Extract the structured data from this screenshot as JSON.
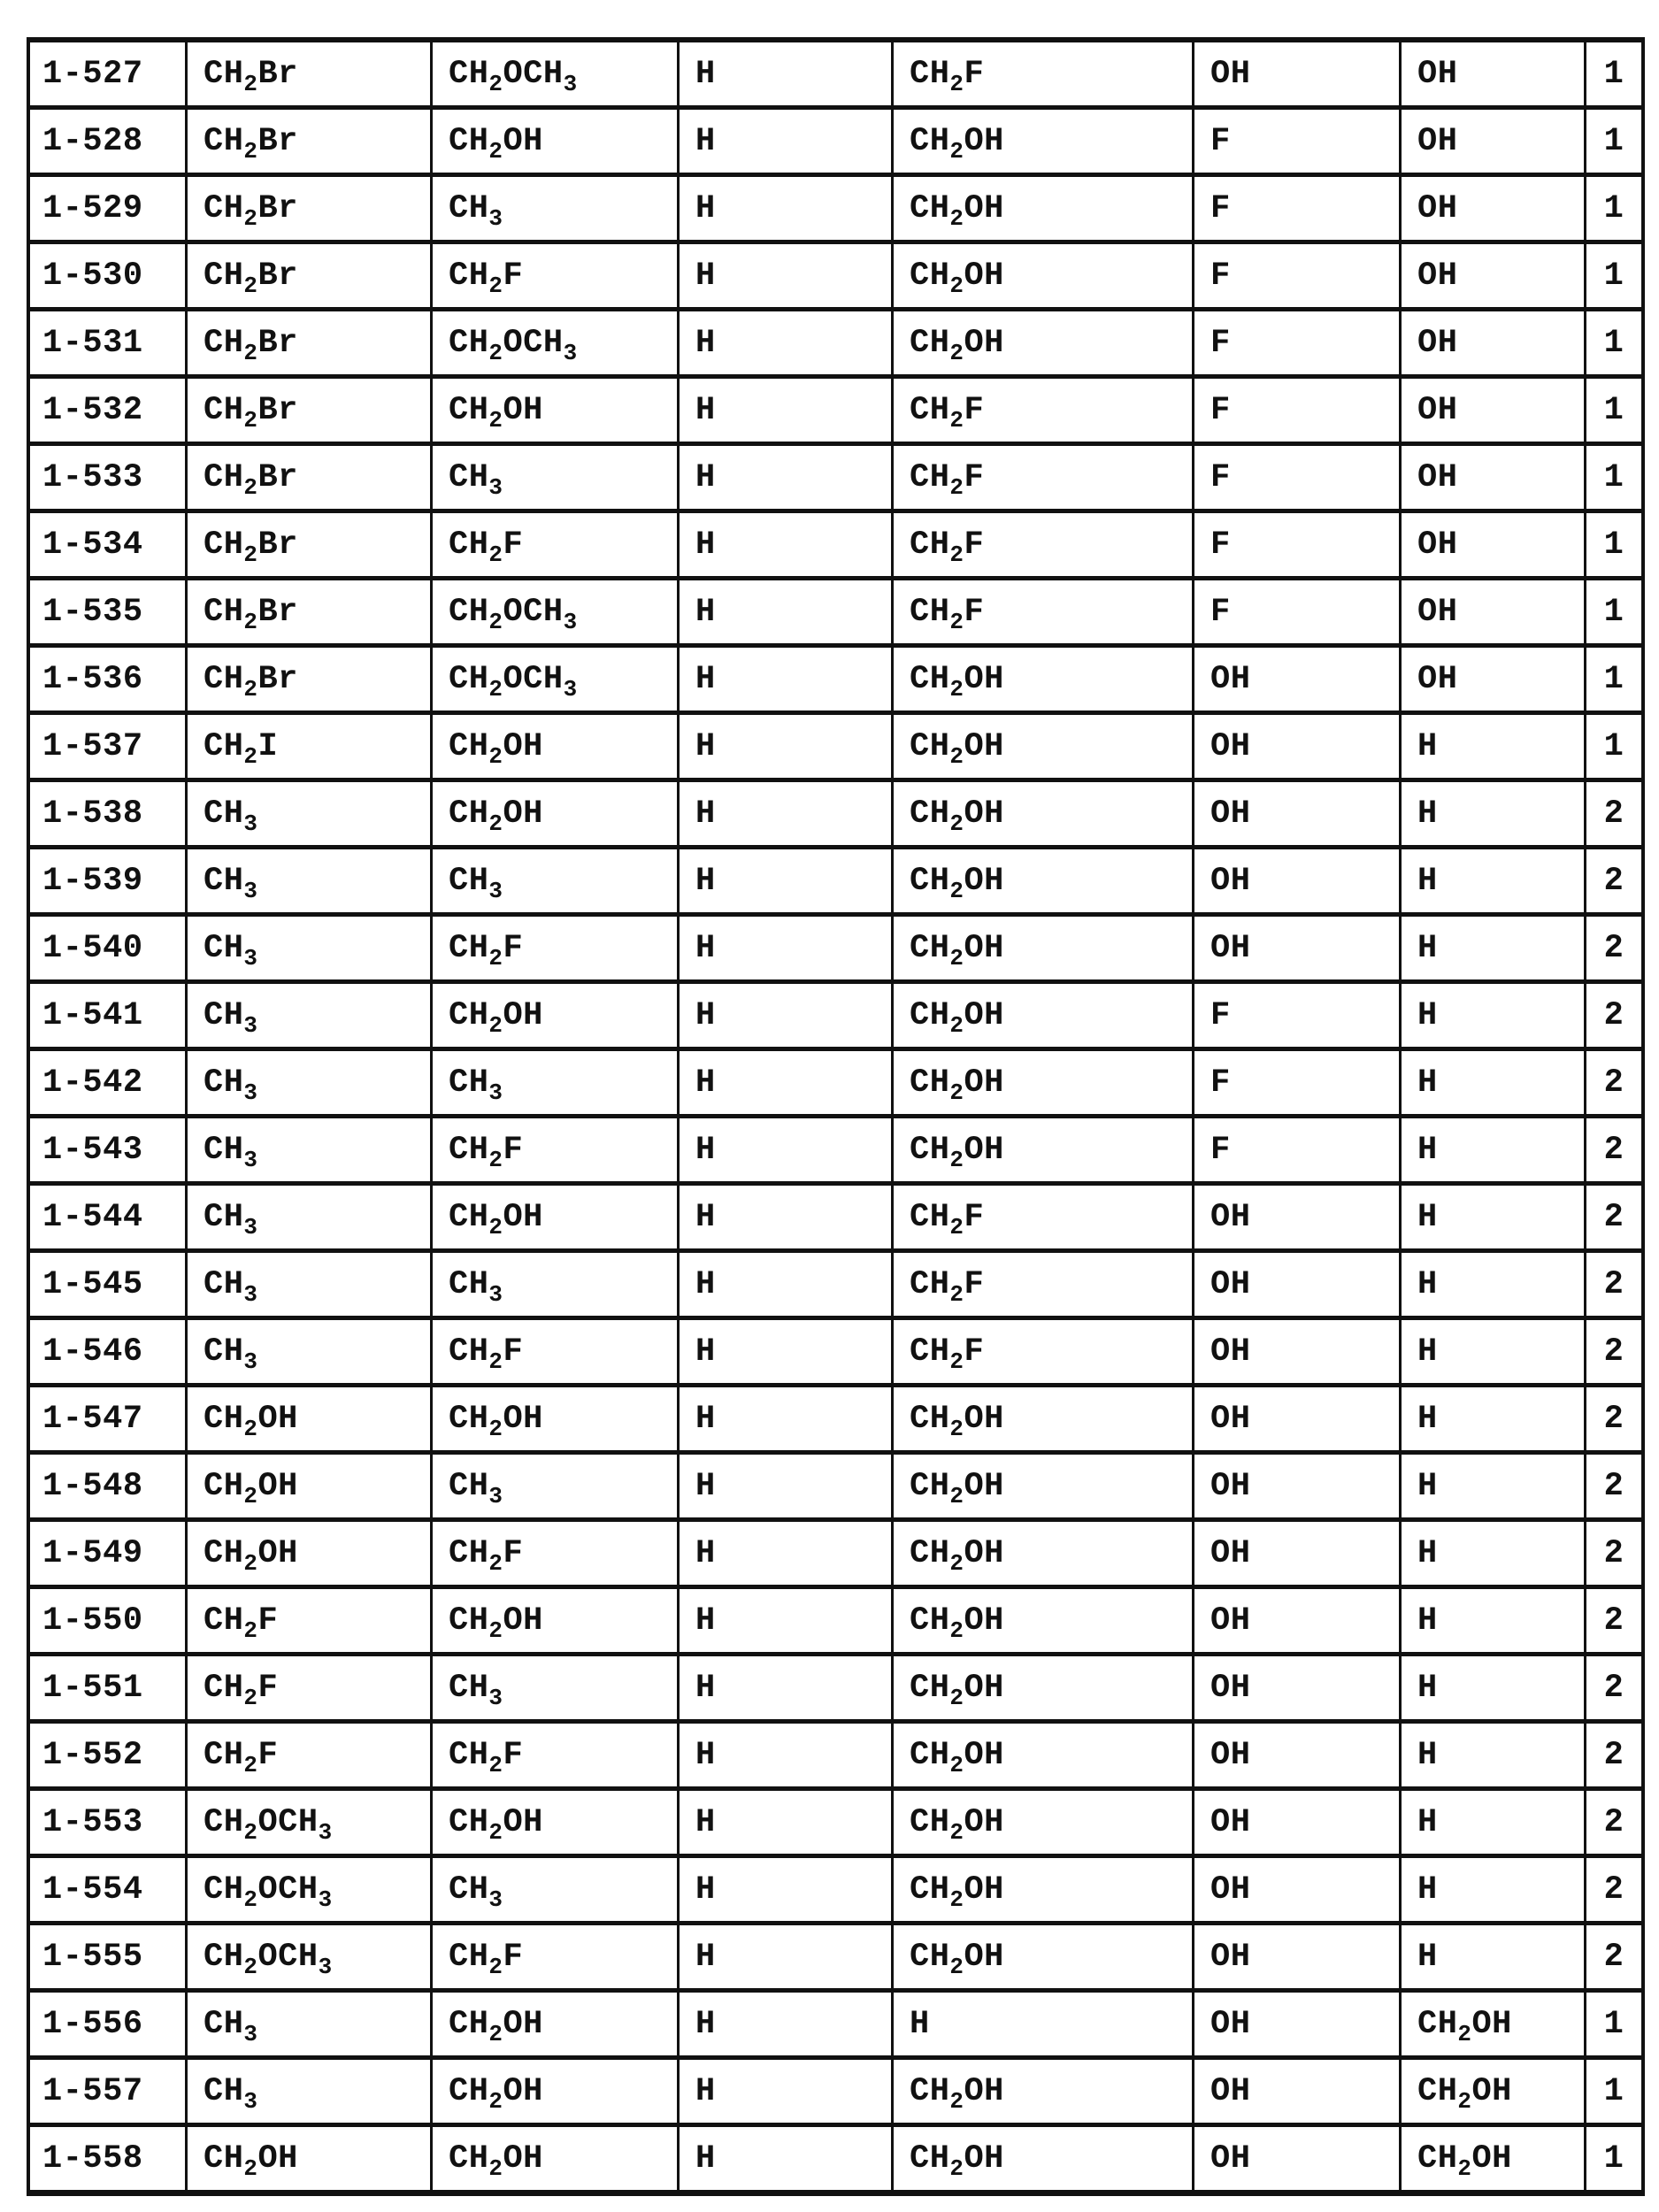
{
  "colors": {
    "ink": "#111111",
    "paper": "#ffffff"
  },
  "table": {
    "rows": [
      [
        "1-527",
        "CH2Br",
        "CH2OCH3",
        "H",
        "CH2F",
        "OH",
        "OH",
        "1"
      ],
      [
        "1-528",
        "CH2Br",
        "CH2OH",
        "H",
        "CH2OH",
        "F",
        "OH",
        "1"
      ],
      [
        "1-529",
        "CH2Br",
        "CH3",
        "H",
        "CH2OH",
        "F",
        "OH",
        "1"
      ],
      [
        "1-530",
        "CH2Br",
        "CH2F",
        "H",
        "CH2OH",
        "F",
        "OH",
        "1"
      ],
      [
        "1-531",
        "CH2Br",
        "CH2OCH3",
        "H",
        "CH2OH",
        "F",
        "OH",
        "1"
      ],
      [
        "1-532",
        "CH2Br",
        "CH2OH",
        "H",
        "CH2F",
        "F",
        "OH",
        "1"
      ],
      [
        "1-533",
        "CH2Br",
        "CH3",
        "H",
        "CH2F",
        "F",
        "OH",
        "1"
      ],
      [
        "1-534",
        "CH2Br",
        "CH2F",
        "H",
        "CH2F",
        "F",
        "OH",
        "1"
      ],
      [
        "1-535",
        "CH2Br",
        "CH2OCH3",
        "H",
        "CH2F",
        "F",
        "OH",
        "1"
      ],
      [
        "1-536",
        "CH2Br",
        "CH2OCH3",
        "H",
        "CH2OH",
        "OH",
        "OH",
        "1"
      ],
      [
        "1-537",
        "CH2I",
        "CH2OH",
        "H",
        "CH2OH",
        "OH",
        "H",
        "1"
      ],
      [
        "1-538",
        "CH3",
        "CH2OH",
        "H",
        "CH2OH",
        "OH",
        "H",
        "2"
      ],
      [
        "1-539",
        "CH3",
        "CH3",
        "H",
        "CH2OH",
        "OH",
        "H",
        "2"
      ],
      [
        "1-540",
        "CH3",
        "CH2F",
        "H",
        "CH2OH",
        "OH",
        "H",
        "2"
      ],
      [
        "1-541",
        "CH3",
        "CH2OH",
        "H",
        "CH2OH",
        "F",
        "H",
        "2"
      ],
      [
        "1-542",
        "CH3",
        "CH3",
        "H",
        "CH2OH",
        "F",
        "H",
        "2"
      ],
      [
        "1-543",
        "CH3",
        "CH2F",
        "H",
        "CH2OH",
        "F",
        "H",
        "2"
      ],
      [
        "1-544",
        "CH3",
        "CH2OH",
        "H",
        "CH2F",
        "OH",
        "H",
        "2"
      ],
      [
        "1-545",
        "CH3",
        "CH3",
        "H",
        "CH2F",
        "OH",
        "H",
        "2"
      ],
      [
        "1-546",
        "CH3",
        "CH2F",
        "H",
        "CH2F",
        "OH",
        "H",
        "2"
      ],
      [
        "1-547",
        "CH2OH",
        "CH2OH",
        "H",
        "CH2OH",
        "OH",
        "H",
        "2"
      ],
      [
        "1-548",
        "CH2OH",
        "CH3",
        "H",
        "CH2OH",
        "OH",
        "H",
        "2"
      ],
      [
        "1-549",
        "CH2OH",
        "CH2F",
        "H",
        "CH2OH",
        "OH",
        "H",
        "2"
      ],
      [
        "1-550",
        "CH2F",
        "CH2OH",
        "H",
        "CH2OH",
        "OH",
        "H",
        "2"
      ],
      [
        "1-551",
        "CH2F",
        "CH3",
        "H",
        "CH2OH",
        "OH",
        "H",
        "2"
      ],
      [
        "1-552",
        "CH2F",
        "CH2F",
        "H",
        "CH2OH",
        "OH",
        "H",
        "2"
      ],
      [
        "1-553",
        "CH2OCH3",
        "CH2OH",
        "H",
        "CH2OH",
        "OH",
        "H",
        "2"
      ],
      [
        "1-554",
        "CH2OCH3",
        "CH3",
        "H",
        "CH2OH",
        "OH",
        "H",
        "2"
      ],
      [
        "1-555",
        "CH2OCH3",
        "CH2F",
        "H",
        "CH2OH",
        "OH",
        "H",
        "2"
      ],
      [
        "1-556",
        "CH3",
        "CH2OH",
        "H",
        "H",
        "OH",
        "CH2OH",
        "1"
      ],
      [
        "1-557",
        "CH3",
        "CH2OH",
        "H",
        "CH2OH",
        "OH",
        "CH2OH",
        "1"
      ],
      [
        "1-558",
        "CH2OH",
        "CH2OH",
        "H",
        "CH2OH",
        "OH",
        "CH2OH",
        "1"
      ]
    ]
  }
}
